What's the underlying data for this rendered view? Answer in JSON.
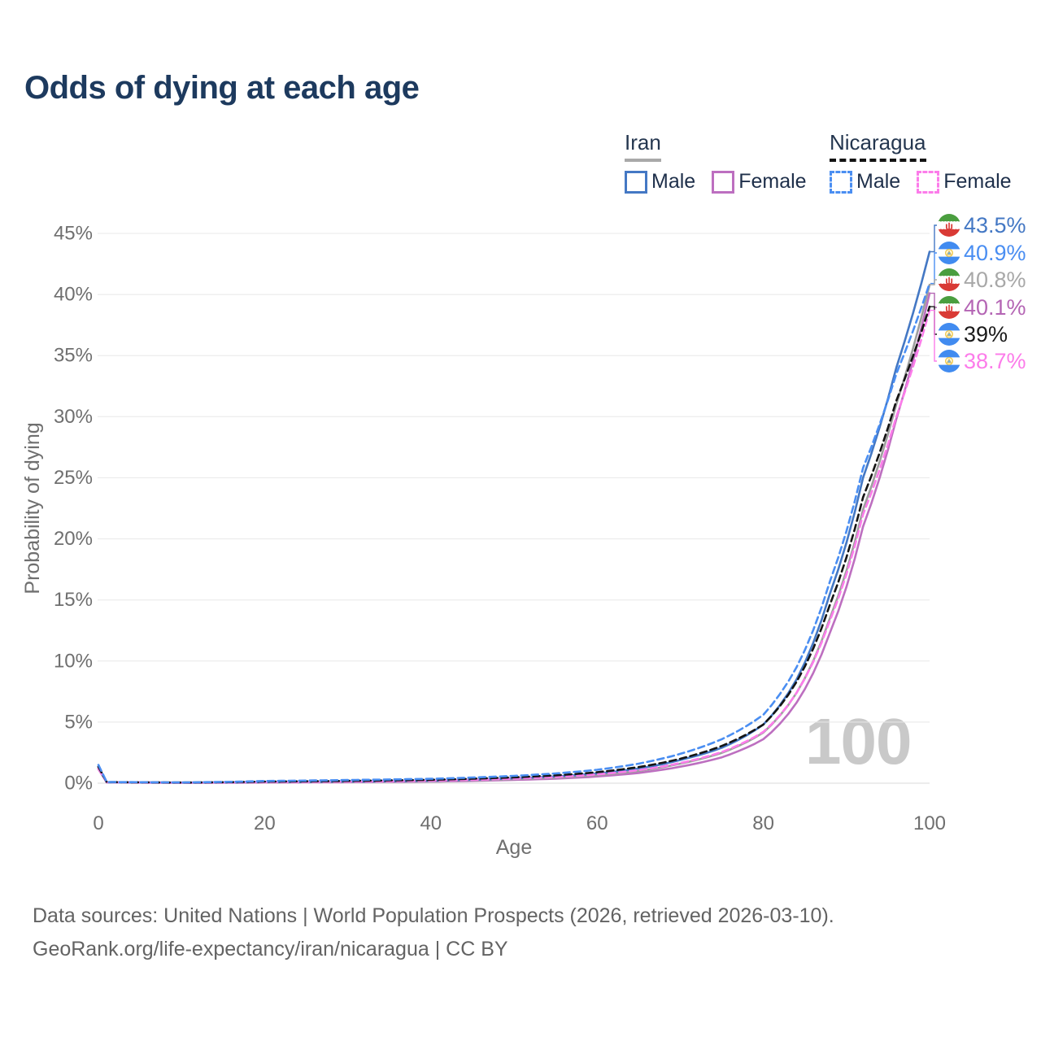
{
  "title": "Odds of dying at each age",
  "legend": {
    "groups": [
      {
        "name": "Iran",
        "line_style": "solid",
        "items": [
          {
            "label": "Male",
            "color": "#4478c4"
          },
          {
            "label": "Female",
            "color": "#bd6fc0"
          }
        ]
      },
      {
        "name": "Nicaragua",
        "line_style": "dashed",
        "items": [
          {
            "label": "Male",
            "color": "#4a8ef2"
          },
          {
            "label": "Female",
            "color": "#fc7cea"
          }
        ]
      }
    ]
  },
  "watermark": "100",
  "footer": {
    "line1": "Data sources: United Nations | World Population Prospects (2026, retrieved 2026-03-10).",
    "line2": "GeoRank.org/life-expectancy/iran/nicaragua | CC BY"
  },
  "chart_data": {
    "type": "line",
    "title": "Odds of dying at each age",
    "xlabel": "Age",
    "ylabel": "Probability of dying",
    "xlim": [
      0,
      100
    ],
    "ylim_percent": [
      0,
      45
    ],
    "x_ticks": [
      0,
      20,
      40,
      60,
      80,
      100
    ],
    "y_ticks_percent": [
      0,
      5,
      10,
      15,
      20,
      25,
      30,
      35,
      40,
      45
    ],
    "grid": true,
    "legend_position": "top-right",
    "ages": [
      0,
      1,
      10,
      20,
      30,
      40,
      50,
      55,
      60,
      65,
      70,
      75,
      80,
      84,
      88,
      92,
      96,
      100
    ],
    "series": [
      {
        "id": "iran-male",
        "country": "Iran",
        "sex": "Male",
        "style": "solid",
        "color": "#4478c4",
        "values_percent": [
          1.35,
          0.08,
          0.05,
          0.09,
          0.13,
          0.2,
          0.4,
          0.55,
          0.8,
          1.2,
          1.9,
          2.9,
          4.8,
          8.5,
          15.5,
          25,
          34,
          43.5
        ],
        "end_value_percent": 43.5
      },
      {
        "id": "nicaragua-male",
        "country": "Nicaragua",
        "sex": "Male",
        "style": "dashed",
        "color": "#4a8ef2",
        "values_percent": [
          1.5,
          0.1,
          0.06,
          0.18,
          0.26,
          0.36,
          0.6,
          0.8,
          1.1,
          1.6,
          2.4,
          3.6,
          5.6,
          9.5,
          16.5,
          25.8,
          33.5,
          40.9
        ],
        "end_value_percent": 40.9
      },
      {
        "id": "iran-both",
        "country": "Iran",
        "sex": "Both sexes",
        "style": "solid",
        "color": "#9e9e9e",
        "values_percent": [
          1.25,
          0.07,
          0.04,
          0.07,
          0.1,
          0.16,
          0.33,
          0.45,
          0.66,
          1,
          1.6,
          2.48,
          4.15,
          7.4,
          13.5,
          22.4,
          31,
          40.8
        ],
        "end_value_percent": 40.8
      },
      {
        "id": "iran-female",
        "country": "Iran",
        "sex": "Female",
        "style": "solid",
        "color": "#bd6fc0",
        "values_percent": [
          1.15,
          0.06,
          0.03,
          0.05,
          0.08,
          0.13,
          0.27,
          0.37,
          0.55,
          0.84,
          1.35,
          2.12,
          3.6,
          6.6,
          12.3,
          21,
          29.8,
          40.1
        ],
        "end_value_percent": 40.1
      },
      {
        "id": "nicaragua-both",
        "country": "Nicaragua",
        "sex": "Both sexes",
        "style": "dashed",
        "color": "#141414",
        "values_percent": [
          1.35,
          0.09,
          0.05,
          0.13,
          0.19,
          0.28,
          0.48,
          0.64,
          0.9,
          1.32,
          2,
          3.05,
          4.8,
          8.3,
          14.6,
          23.4,
          31.3,
          39
        ],
        "end_value_percent": 39
      },
      {
        "id": "nicaragua-female",
        "country": "Nicaragua",
        "sex": "Female",
        "style": "dashed",
        "color": "#fc7cea",
        "values_percent": [
          1.2,
          0.08,
          0.04,
          0.08,
          0.12,
          0.2,
          0.37,
          0.5,
          0.72,
          1.07,
          1.65,
          2.55,
          4.2,
          7.4,
          13.3,
          22,
          30,
          38.7
        ],
        "end_value_percent": 38.7
      }
    ],
    "end_labels": [
      {
        "text": "43.5%",
        "series": "iran-male",
        "flag": "iran",
        "color": "#4478c4"
      },
      {
        "text": "40.9%",
        "series": "nicaragua-male",
        "flag": "nicaragua",
        "color": "#4a8ef2"
      },
      {
        "text": "40.8%",
        "series": "iran-both",
        "flag": "iran",
        "color": "#a8a8a8"
      },
      {
        "text": "40.1%",
        "series": "iran-female",
        "flag": "iran",
        "color": "#b465b4"
      },
      {
        "text": "39%",
        "series": "nicaragua-both",
        "flag": "nicaragua",
        "color": "#1a1a1a"
      },
      {
        "text": "38.7%",
        "series": "nicaragua-female",
        "flag": "nicaragua",
        "color": "#fc7cea"
      }
    ]
  }
}
